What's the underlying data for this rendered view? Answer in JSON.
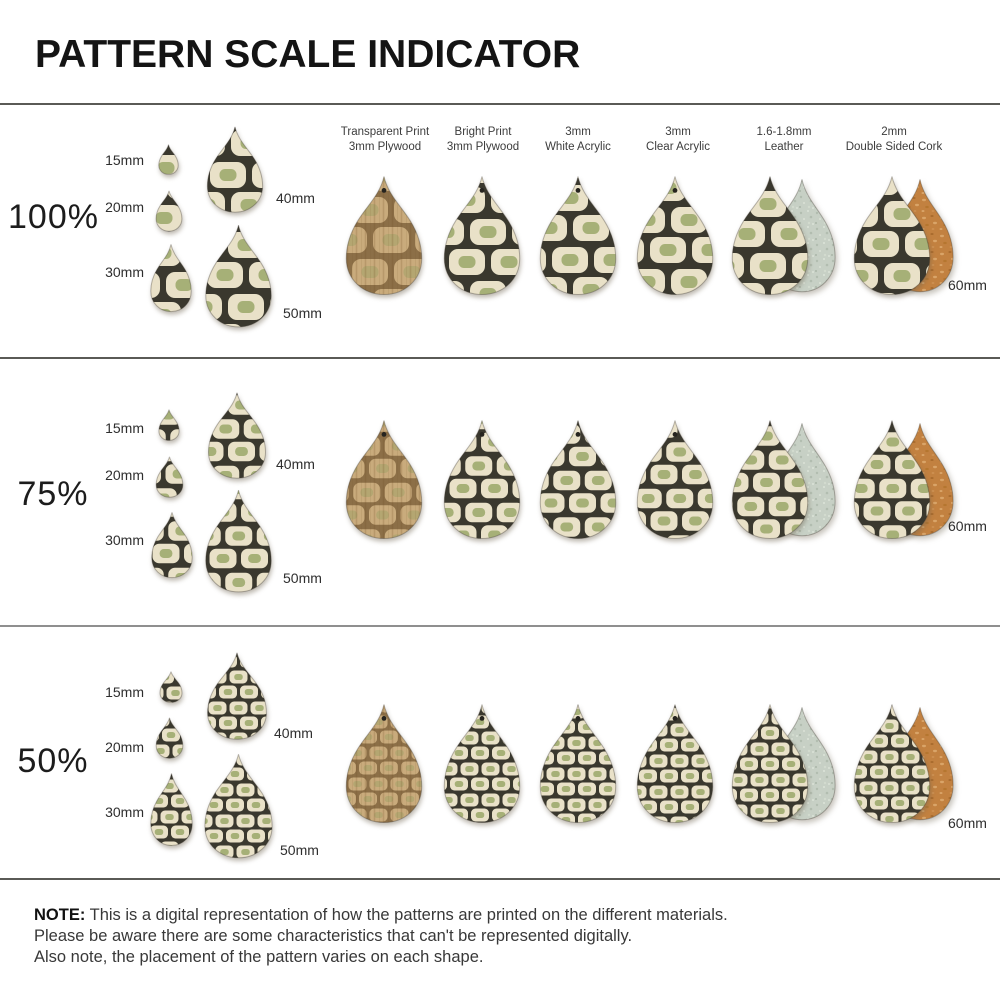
{
  "title": "PATTERN SCALE INDICATOR",
  "columns": [
    {
      "line1": "Transparent Print",
      "line2": "3mm Plywood"
    },
    {
      "line1": "Bright Print",
      "line2": "3mm Plywood"
    },
    {
      "line1": "3mm",
      "line2": "White Acrylic"
    },
    {
      "line1": "3mm",
      "line2": "Clear Acrylic"
    },
    {
      "line1": "1.6-1.8mm",
      "line2": "Leather"
    },
    {
      "line1": "2mm",
      "line2": "Double Sided Cork"
    }
  ],
  "rows": [
    {
      "scale": "100%"
    },
    {
      "scale": "75%"
    },
    {
      "scale": "50%"
    }
  ],
  "sizes": {
    "s15": "15mm",
    "s20": "20mm",
    "s30": "30mm",
    "s40": "40mm",
    "s50": "50mm",
    "s60": "60mm"
  },
  "note": {
    "label": "NOTE:",
    "line1": "This is a digital representation of how the patterns are printed on the different materials.",
    "line2": "Please be aware there are some characteristics that can't be represented digitally.",
    "line3": "Also note, the placement of the pattern varies on each shape."
  },
  "colors": {
    "pattern_background": "#e9e1c8",
    "pattern_line": "#3a382e",
    "pattern_green": "#a6b077",
    "wood_background": "#c9ab7c",
    "wood_line": "#8c6f47",
    "wood_green": "#b4a671",
    "leather_back": "#c7d0c5",
    "cork_back": "#c28140",
    "divider": "#5a5a56"
  }
}
